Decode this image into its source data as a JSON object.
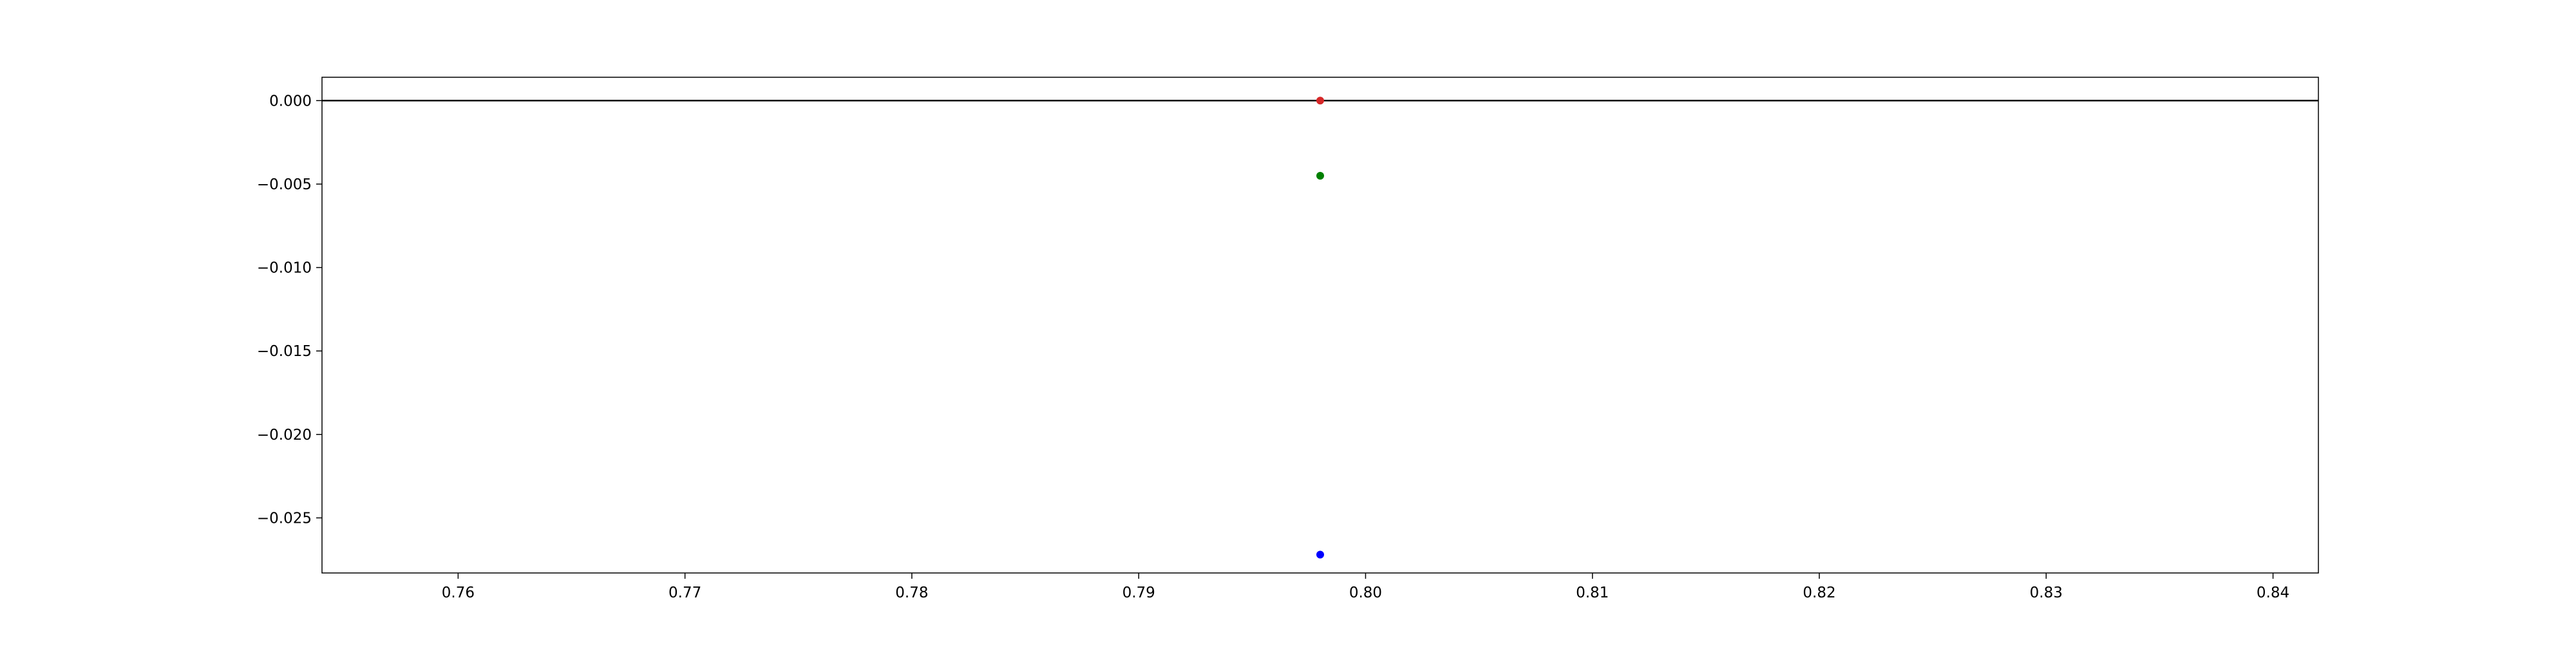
{
  "chart_data": {
    "type": "scatter",
    "title": "",
    "xlabel": "",
    "ylabel": "",
    "xlim": [
      0.754,
      0.842
    ],
    "ylim": [
      -0.0283,
      0.0014
    ],
    "x_ticks": [
      "0.76",
      "0.77",
      "0.78",
      "0.79",
      "0.80",
      "0.81",
      "0.82",
      "0.83",
      "0.84"
    ],
    "x_tick_values": [
      0.76,
      0.77,
      0.78,
      0.79,
      0.8,
      0.81,
      0.82,
      0.83,
      0.84
    ],
    "y_ticks": [
      "0.000",
      "−0.005",
      "−0.010",
      "−0.015",
      "−0.020",
      "−0.025"
    ],
    "y_tick_values": [
      0.0,
      -0.005,
      -0.01,
      -0.015,
      -0.02,
      -0.025
    ],
    "reference_line": {
      "y": 0.0,
      "color": "#000000"
    },
    "series": [
      {
        "x": [
          0.798
        ],
        "y": [
          0.0
        ],
        "color": "#d62728"
      },
      {
        "x": [
          0.798
        ],
        "y": [
          -0.0045
        ],
        "color": "#008000"
      },
      {
        "x": [
          0.798
        ],
        "y": [
          -0.0272
        ],
        "color": "#0000ff"
      }
    ],
    "grid": false,
    "legend": "none"
  }
}
